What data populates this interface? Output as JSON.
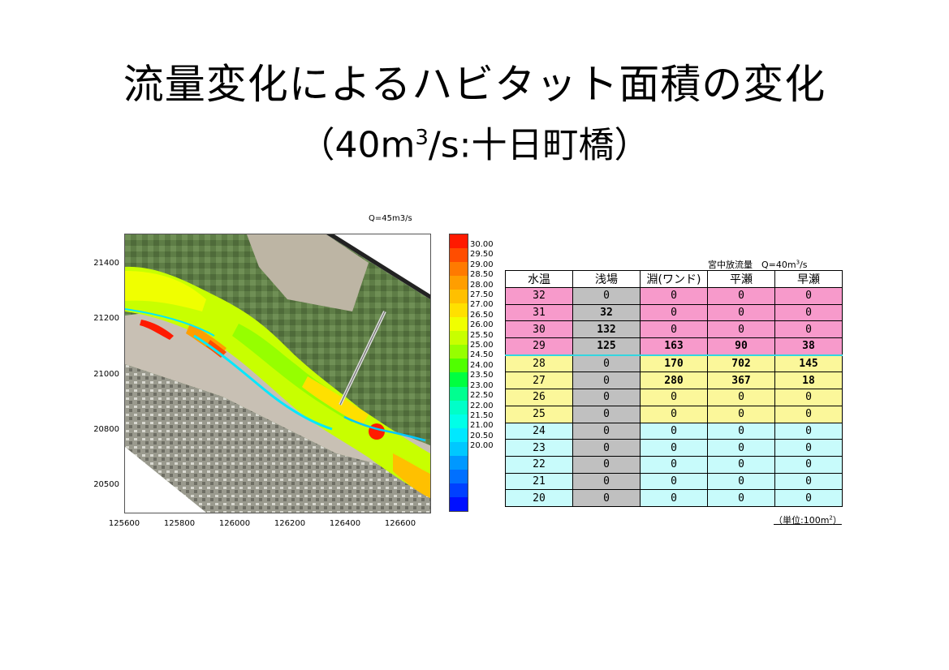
{
  "title": {
    "line1": "流量変化によるハビタット面積の変化",
    "line2_pre": "（40m",
    "line2_sup": "3",
    "line2_post": "/s:十日町橋）"
  },
  "map": {
    "label": "Q=45m3/s",
    "y_ticks": [
      "21400",
      "21200",
      "21000",
      "20800",
      "20500"
    ],
    "x_ticks": [
      "125600",
      "125800",
      "126000",
      "126200",
      "126400",
      "126600"
    ]
  },
  "colorbar": {
    "labels": [
      "30.00",
      "29.50",
      "29.00",
      "28.50",
      "28.00",
      "27.50",
      "27.00",
      "26.50",
      "26.00",
      "25.50",
      "25.00",
      "24.50",
      "24.00",
      "23.50",
      "23.00",
      "22.50",
      "22.00",
      "21.50",
      "21.00",
      "20.50",
      "20.00"
    ],
    "colors": [
      "#ff1a00",
      "#ff4d00",
      "#ff7a00",
      "#ff9e00",
      "#ffc000",
      "#ffe000",
      "#f0ff00",
      "#c8ff00",
      "#96ff00",
      "#50ff00",
      "#00ff40",
      "#00ff90",
      "#00ffc8",
      "#00ffe8",
      "#00e8ff",
      "#00c8ff",
      "#0098ff",
      "#0070ff",
      "#0040ff",
      "#0010ff"
    ]
  },
  "table": {
    "header_label": "宮中放流量　Q=40m",
    "header_sup": "3",
    "header_post": "/s",
    "columns": [
      "水温",
      "浅場",
      "淵(ワンド)",
      "平瀬",
      "早瀬"
    ],
    "rows": [
      {
        "group": "pink",
        "cells": [
          "32",
          "0",
          "0",
          "0",
          "0"
        ]
      },
      {
        "group": "pink",
        "cells": [
          "31",
          "32",
          "0",
          "0",
          "0"
        ]
      },
      {
        "group": "pink",
        "cells": [
          "30",
          "132",
          "0",
          "0",
          "0"
        ]
      },
      {
        "group": "pink",
        "cells": [
          "29",
          "125",
          "163",
          "90",
          "38"
        ]
      },
      {
        "group": "yellow",
        "cells": [
          "28",
          "0",
          "170",
          "702",
          "145"
        ]
      },
      {
        "group": "yellow",
        "cells": [
          "27",
          "0",
          "280",
          "367",
          "18"
        ]
      },
      {
        "group": "yellow",
        "cells": [
          "26",
          "0",
          "0",
          "0",
          "0"
        ]
      },
      {
        "group": "yellow",
        "cells": [
          "25",
          "0",
          "0",
          "0",
          "0"
        ]
      },
      {
        "group": "cyan",
        "cells": [
          "24",
          "0",
          "0",
          "0",
          "0"
        ]
      },
      {
        "group": "cyan",
        "cells": [
          "23",
          "0",
          "0",
          "0",
          "0"
        ]
      },
      {
        "group": "cyan",
        "cells": [
          "22",
          "0",
          "0",
          "0",
          "0"
        ]
      },
      {
        "group": "cyan",
        "cells": [
          "21",
          "0",
          "0",
          "0",
          "0"
        ]
      },
      {
        "group": "cyan",
        "cells": [
          "20",
          "0",
          "0",
          "0",
          "0"
        ]
      }
    ],
    "unit_pre": "（単位:100m",
    "unit_sup": "2",
    "unit_post": "）"
  }
}
